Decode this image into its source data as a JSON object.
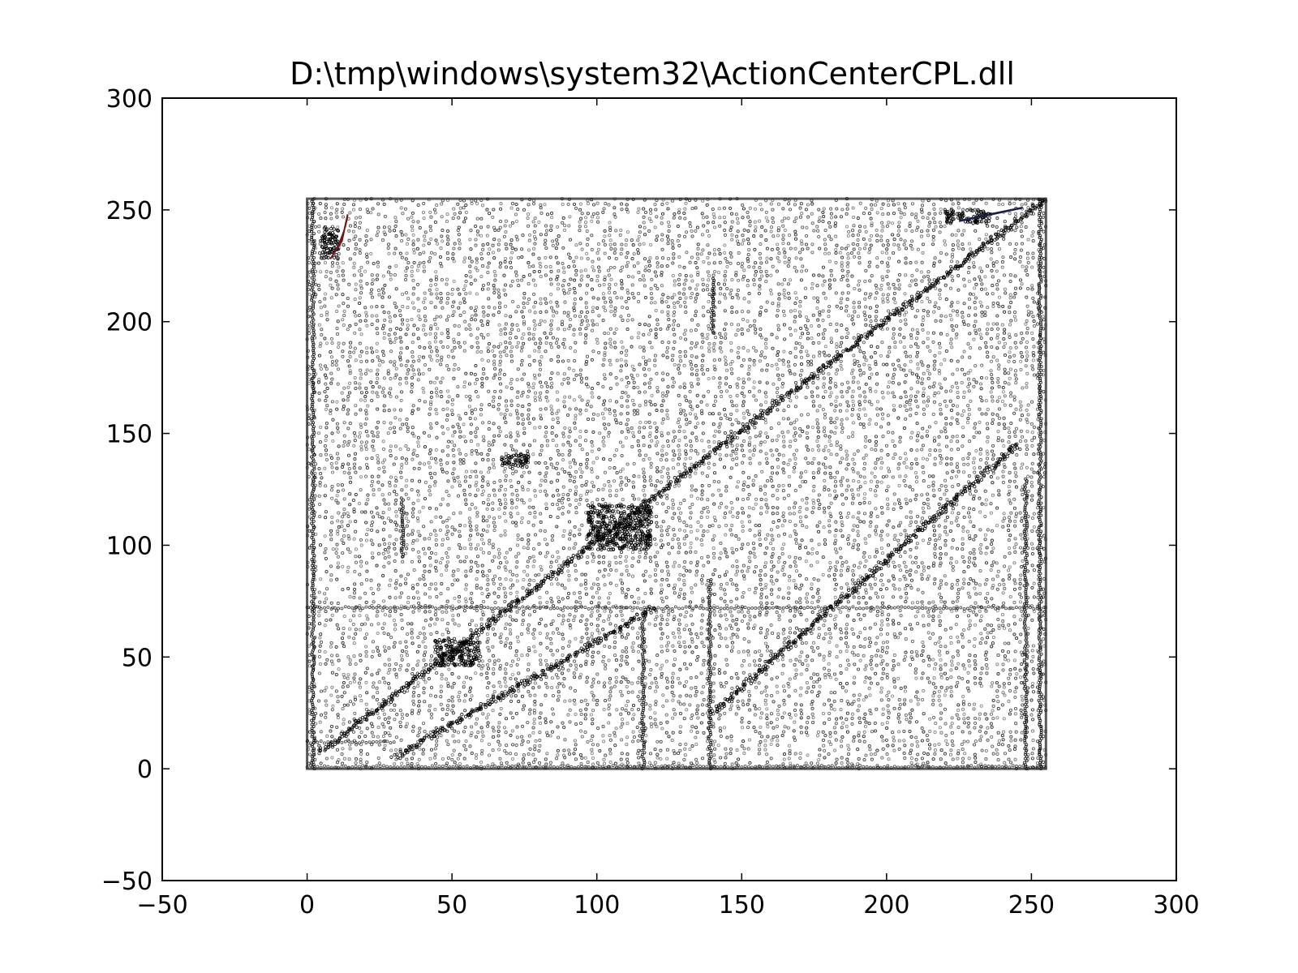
{
  "chart_data": {
    "type": "scatter",
    "title": "D:\\tmp\\windows\\system32\\ActionCenterCPL.dll",
    "xlabel": "",
    "ylabel": "",
    "xlim": [
      -50,
      300
    ],
    "ylim": [
      -50,
      300
    ],
    "xticks": [
      -50,
      0,
      50,
      100,
      150,
      200,
      250,
      300
    ],
    "yticks": [
      -50,
      0,
      50,
      100,
      150,
      200,
      250,
      300
    ],
    "x_tick_labels": [
      "−50",
      "0",
      "50",
      "100",
      "150",
      "200",
      "250",
      "300"
    ],
    "y_tick_labels": [
      "−50",
      "0",
      "50",
      "100",
      "150",
      "200",
      "250",
      "300"
    ],
    "grid": false,
    "legend": "none",
    "point_domain": {
      "x": [
        0,
        255
      ],
      "y": [
        0,
        255
      ]
    },
    "marker_color": "#000000",
    "features": {
      "diagonals": [
        {
          "x0": 5,
          "y0": 8,
          "x1": 255,
          "y1": 255
        },
        {
          "x0": 30,
          "y0": 5,
          "x1": 120,
          "y1": 72
        },
        {
          "x0": 140,
          "y0": 25,
          "x1": 245,
          "y1": 145
        }
      ],
      "vertical_lines": [
        {
          "x": 2,
          "y0": 0,
          "y1": 255
        },
        {
          "x": 33,
          "y0": 95,
          "y1": 122
        },
        {
          "x": 116,
          "y0": 0,
          "y1": 70
        },
        {
          "x": 139,
          "y0": 0,
          "y1": 85
        },
        {
          "x": 140,
          "y0": 195,
          "y1": 220
        },
        {
          "x": 248,
          "y0": 0,
          "y1": 130
        },
        {
          "x": 253,
          "y0": 0,
          "y1": 255
        }
      ],
      "horizontal_lines": [
        {
          "y": 72,
          "x0": 0,
          "x1": 255
        },
        {
          "y": 12,
          "x0": 0,
          "x1": 30
        },
        {
          "y": 1,
          "x0": 0,
          "x1": 255
        }
      ],
      "clusters": [
        {
          "x": 108,
          "y": 108,
          "w": 22,
          "h": 20
        },
        {
          "x": 52,
          "y": 52,
          "w": 16,
          "h": 12
        },
        {
          "x": 72,
          "y": 138,
          "w": 10,
          "h": 6
        },
        {
          "x": 228,
          "y": 247,
          "w": 16,
          "h": 6
        },
        {
          "x": 8,
          "y": 235,
          "w": 6,
          "h": 14
        }
      ]
    },
    "accent_colors": {
      "red_mark": "#6b1a1a",
      "blue_mark": "#1a1f4a"
    }
  }
}
